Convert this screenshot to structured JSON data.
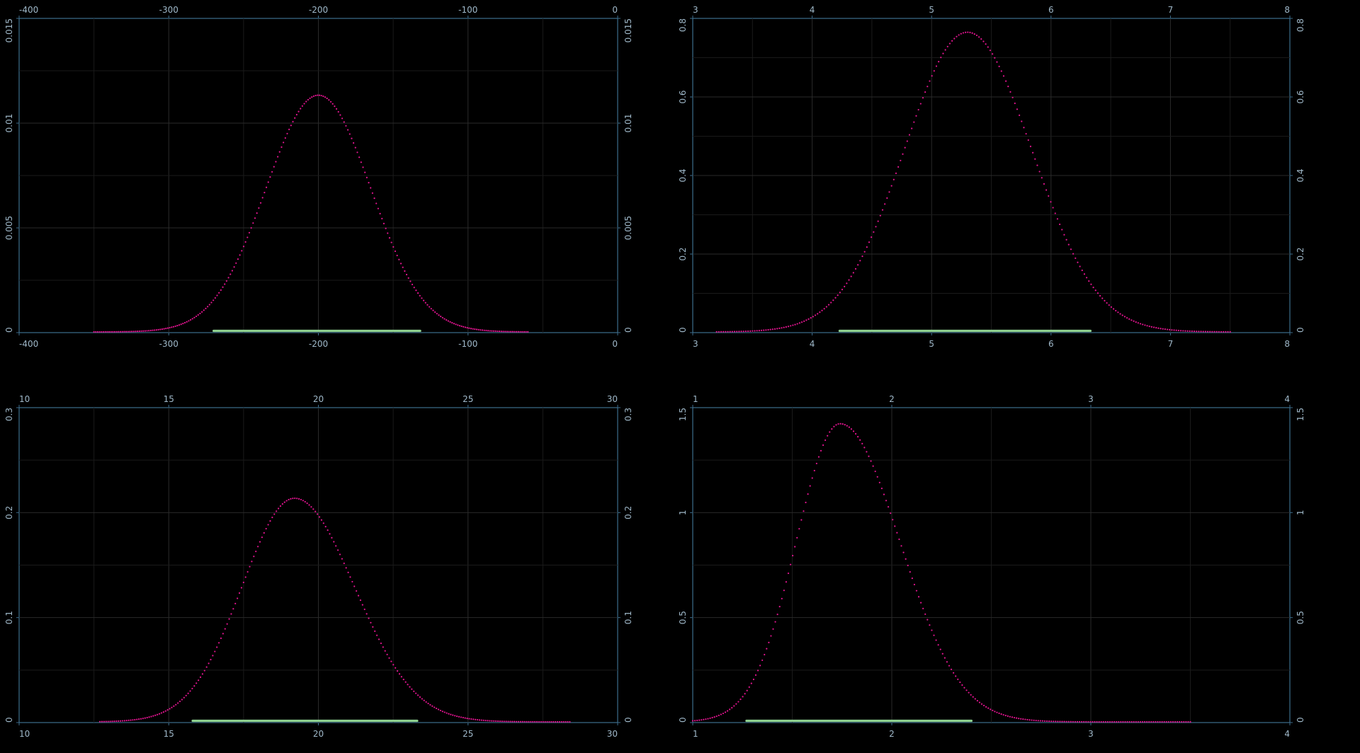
{
  "chart_data": [
    {
      "type": "scatter",
      "title": "",
      "xlabel": "",
      "ylabel": "",
      "xlim": [
        -400,
        0
      ],
      "ylim": [
        0,
        0.015
      ],
      "xticks": [
        -400,
        -300,
        -200,
        -100,
        0
      ],
      "xtick_labels": [
        "-400",
        "-300",
        "-200",
        "-100",
        "0"
      ],
      "yticks": [
        0,
        0.005,
        0.01,
        0.015
      ],
      "ytick_labels": [
        "0",
        "0.005",
        "0.01",
        "0.015"
      ],
      "grid": true,
      "density": {
        "mode": -200,
        "peak": 0.0113,
        "sd_left": 35,
        "sd_right": 35,
        "x_start": -350,
        "x_end": -60,
        "n_points": 230
      },
      "interval": [
        -270,
        -132
      ],
      "colors": {
        "points": "#e0148e",
        "interval": "#8ed08e",
        "axis": "#3d6d8c"
      }
    },
    {
      "type": "scatter",
      "title": "",
      "xlabel": "",
      "ylabel": "",
      "xlim": [
        3,
        8
      ],
      "ylim": [
        0,
        0.8
      ],
      "xticks": [
        3,
        4,
        5,
        6,
        7,
        8
      ],
      "xtick_labels": [
        "3",
        "4",
        "5",
        "6",
        "7",
        "8"
      ],
      "yticks": [
        0,
        0.2,
        0.4,
        0.6,
        0.8
      ],
      "ytick_labels": [
        "0",
        "0.2",
        "0.4",
        "0.6",
        "0.8"
      ],
      "grid": true,
      "density": {
        "mode": 5.3,
        "peak": 0.763,
        "sd_left": 0.53,
        "sd_right": 0.54,
        "x_start": 3.2,
        "x_end": 7.5,
        "n_points": 230
      },
      "interval": [
        4.23,
        6.33
      ],
      "colors": {
        "points": "#e0148e",
        "interval": "#8ed08e",
        "axis": "#3d6d8c"
      }
    },
    {
      "type": "scatter",
      "title": "",
      "xlabel": "",
      "ylabel": "",
      "xlim": [
        10,
        30
      ],
      "ylim": [
        0,
        0.3
      ],
      "xticks": [
        10,
        15,
        20,
        25,
        30
      ],
      "xtick_labels": [
        "10",
        "15",
        "20",
        "25",
        "30"
      ],
      "yticks": [
        0,
        0.1,
        0.2,
        0.3
      ],
      "ytick_labels": [
        "0",
        "0.1",
        "0.2",
        "0.3"
      ],
      "grid": true,
      "density": {
        "mode": 19.2,
        "peak": 0.213,
        "sd_left": 1.75,
        "sd_right": 2.0,
        "x_start": 12.7,
        "x_end": 28.4,
        "n_points": 230
      },
      "interval": [
        15.8,
        23.3
      ],
      "colors": {
        "points": "#e0148e",
        "interval": "#8ed08e",
        "axis": "#3d6d8c"
      }
    },
    {
      "type": "scatter",
      "title": "",
      "xlabel": "",
      "ylabel": "",
      "xlim": [
        1,
        4
      ],
      "ylim": [
        0,
        1.5
      ],
      "xticks": [
        1,
        2,
        3,
        4
      ],
      "xtick_labels": [
        "1",
        "2",
        "3",
        "4"
      ],
      "yticks": [
        0,
        0.5,
        1,
        1.5
      ],
      "ytick_labels": [
        "0",
        "0.5",
        "1",
        "1.5"
      ],
      "grid": true,
      "density": {
        "mode": 1.74,
        "peak": 1.42,
        "sd_left": 0.22,
        "sd_right": 0.3,
        "x_start": 1.0,
        "x_end": 3.5,
        "n_points": 230
      },
      "interval": [
        1.27,
        2.4
      ],
      "colors": {
        "points": "#e0148e",
        "interval": "#8ed08e",
        "axis": "#3d6d8c"
      }
    }
  ]
}
